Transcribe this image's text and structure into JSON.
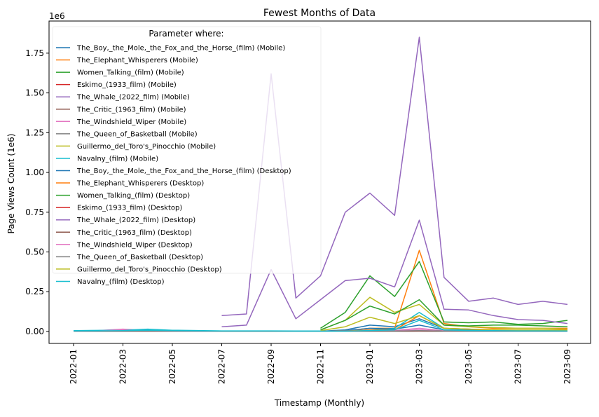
{
  "chart_data": {
    "type": "line",
    "title": "Fewest Months of Data",
    "x_label": "Timestamp (Monthly)",
    "y_label": "Page Views Count (1e6)",
    "y_offset_label": "1e6",
    "legend_title": "Parameter where:",
    "legend": "upper left",
    "categories": [
      "2022-01",
      null,
      "2022-03",
      null,
      "2022-05",
      null,
      "2022-07",
      null,
      "2022-09",
      null,
      "2022-11",
      null,
      "2023-01",
      null,
      "2023-03",
      null,
      "2023-05",
      null,
      "2023-07",
      null,
      "2023-09"
    ],
    "ylim": [
      -0.075,
      1.952
    ],
    "yticks": [
      {
        "value": 0,
        "label": "0.00"
      },
      0.25,
      {
        "value": 0.5,
        "label": "0.50"
      },
      0.75,
      {
        "value": 1,
        "label": "1.00"
      },
      1.25,
      {
        "value": 1.5,
        "label": "1.50"
      },
      1.75
    ],
    "series": [
      {
        "name": "The_Boy,_the_Mole,_the_Fox_and_the_Horse_(film) (Mobile)",
        "color": "#1f77b4",
        "values": [
          null,
          null,
          null,
          null,
          null,
          null,
          null,
          null,
          null,
          null,
          0.002,
          0.01,
          0.04,
          0.03,
          0.08,
          0.02,
          0.015,
          0.01,
          0.01,
          0.01,
          0.01
        ]
      },
      {
        "name": "The_Elephant_Whisperers (Mobile)",
        "color": "#ff7f0e",
        "values": [
          null,
          null,
          null,
          null,
          null,
          null,
          null,
          null,
          null,
          null,
          0.001,
          0.005,
          0.02,
          0.02,
          0.51,
          0.05,
          0.03,
          0.02,
          0.02,
          0.02,
          0.02
        ]
      },
      {
        "name": "Women_Talking_(film) (Mobile)",
        "color": "#2ca02c",
        "values": [
          null,
          null,
          null,
          null,
          null,
          null,
          null,
          null,
          null,
          null,
          0.02,
          0.12,
          0.35,
          0.22,
          0.44,
          0.06,
          0.055,
          0.06,
          0.045,
          0.05,
          0.07
        ]
      },
      {
        "name": "Eskimo_(1933_film) (Mobile)",
        "color": "#d62728",
        "values": [
          0.002,
          0.002,
          0.002,
          0.002,
          0.002,
          0.002,
          0.002,
          0.002,
          0.002,
          0.002,
          0.002,
          0.002,
          0.002,
          0.002,
          0.003,
          0.002,
          0.002,
          0.002,
          0.002,
          0.002,
          0.002
        ]
      },
      {
        "name": "The_Whale_(2022_film) (Mobile)",
        "color": "#9467bd",
        "values": [
          null,
          null,
          null,
          null,
          null,
          null,
          0.1,
          0.11,
          1.62,
          0.21,
          0.35,
          0.75,
          0.87,
          0.73,
          1.85,
          0.34,
          0.19,
          0.21,
          0.17,
          0.19,
          0.17
        ]
      },
      {
        "name": "The_Critic_(1963_film) (Mobile)",
        "color": "#8c564b",
        "values": [
          0.003,
          0.003,
          0.003,
          0.003,
          0.003,
          0.003,
          0.002,
          0.002,
          0.002,
          0.002,
          0.002,
          0.002,
          0.002,
          0.002,
          0.003,
          0.002,
          0.002,
          0.002,
          0.002,
          0.002,
          0.002
        ]
      },
      {
        "name": "The_Windshield_Wiper (Mobile)",
        "color": "#e377c2",
        "values": [
          0.004,
          0.006,
          0.015,
          0.006,
          0.004,
          0.003,
          0.002,
          0.002,
          0.002,
          0.002,
          0.002,
          0.003,
          0.005,
          0.006,
          0.02,
          0.004,
          0.003,
          0.003,
          0.003,
          0.003,
          0.003
        ]
      },
      {
        "name": "The_Queen_of_Basketball (Mobile)",
        "color": "#7f7f7f",
        "values": [
          0.003,
          0.003,
          0.004,
          0.003,
          0.003,
          0.003,
          0.002,
          0.002,
          0.002,
          0.002,
          0.002,
          0.002,
          0.003,
          0.004,
          0.01,
          0.003,
          0.002,
          0.002,
          0.002,
          0.002,
          0.002
        ]
      },
      {
        "name": "Guillermo_del_Toro's_Pinocchio (Mobile)",
        "color": "#bcbd22",
        "values": [
          null,
          null,
          null,
          null,
          null,
          null,
          null,
          null,
          null,
          null,
          0.01,
          0.07,
          0.215,
          0.12,
          0.17,
          0.04,
          0.03,
          0.025,
          0.02,
          0.02,
          0.015
        ]
      },
      {
        "name": "Navalny_(film) (Mobile)",
        "color": "#17becf",
        "values": [
          0.005,
          0.007,
          0.008,
          0.015,
          0.008,
          0.006,
          0.004,
          0.004,
          0.004,
          0.003,
          0.003,
          0.003,
          0.01,
          0.02,
          0.12,
          0.02,
          0.01,
          0.008,
          0.006,
          0.006,
          0.005
        ]
      },
      {
        "name": "The_Boy,_the_Mole,_the_Fox_and_the_Horse_(film) (Desktop)",
        "color": "#1f77b4",
        "values": [
          null,
          null,
          null,
          null,
          null,
          null,
          null,
          null,
          null,
          null,
          0.001,
          0.005,
          0.02,
          0.015,
          0.04,
          0.01,
          0.008,
          0.006,
          0.005,
          0.005,
          0.005
        ]
      },
      {
        "name": "The_Elephant_Whisperers (Desktop)",
        "color": "#ff7f0e",
        "values": [
          null,
          null,
          null,
          null,
          null,
          null,
          null,
          null,
          null,
          null,
          0.001,
          0.003,
          0.01,
          0.01,
          0.1,
          0.02,
          0.015,
          0.01,
          0.01,
          0.01,
          0.01
        ]
      },
      {
        "name": "Women_Talking_(film) (Desktop)",
        "color": "#2ca02c",
        "values": [
          null,
          null,
          null,
          null,
          null,
          null,
          null,
          null,
          null,
          null,
          0.01,
          0.07,
          0.16,
          0.11,
          0.2,
          0.04,
          0.035,
          0.04,
          0.04,
          0.035,
          0.03
        ]
      },
      {
        "name": "Eskimo_(1933_film) (Desktop)",
        "color": "#d62728",
        "values": [
          0.001,
          0.001,
          0.001,
          0.001,
          0.001,
          0.001,
          0.001,
          0.001,
          0.001,
          0.001,
          0.001,
          0.001,
          0.001,
          0.001,
          0.002,
          0.001,
          0.001,
          0.001,
          0.001,
          0.001,
          0.001
        ]
      },
      {
        "name": "The_Whale_(2022_film) (Desktop)",
        "color": "#9467bd",
        "values": [
          null,
          null,
          null,
          null,
          null,
          null,
          0.03,
          0.04,
          0.39,
          0.08,
          0.2,
          0.32,
          0.335,
          0.28,
          0.7,
          0.14,
          0.135,
          0.1,
          0.075,
          0.07,
          0.05
        ]
      },
      {
        "name": "The_Critic_(1963_film) (Desktop)",
        "color": "#8c564b",
        "values": [
          0.002,
          0.002,
          0.002,
          0.002,
          0.002,
          0.002,
          0.001,
          0.001,
          0.001,
          0.001,
          0.001,
          0.001,
          0.001,
          0.001,
          0.002,
          0.001,
          0.001,
          0.001,
          0.001,
          0.001,
          0.001
        ]
      },
      {
        "name": "The_Windshield_Wiper (Desktop)",
        "color": "#e377c2",
        "values": [
          0.002,
          0.003,
          0.008,
          0.003,
          0.002,
          0.002,
          0.001,
          0.001,
          0.001,
          0.001,
          0.001,
          0.002,
          0.003,
          0.003,
          0.01,
          0.002,
          0.002,
          0.002,
          0.002,
          0.002,
          0.002
        ]
      },
      {
        "name": "The_Queen_of_Basketball (Desktop)",
        "color": "#7f7f7f",
        "values": [
          0.002,
          0.002,
          0.002,
          0.002,
          0.002,
          0.002,
          0.001,
          0.001,
          0.001,
          0.001,
          0.001,
          0.001,
          0.002,
          0.002,
          0.005,
          0.002,
          0.001,
          0.001,
          0.001,
          0.001,
          0.001
        ]
      },
      {
        "name": "Guillermo_del_Toro's_Pinocchio (Desktop)",
        "color": "#bcbd22",
        "values": [
          null,
          null,
          null,
          null,
          null,
          null,
          null,
          null,
          null,
          null,
          0.005,
          0.03,
          0.09,
          0.05,
          0.1,
          0.02,
          0.015,
          0.012,
          0.01,
          0.01,
          0.008
        ]
      },
      {
        "name": "Navalny_(film) (Desktop)",
        "color": "#17becf",
        "values": [
          0.003,
          0.004,
          0.005,
          0.008,
          0.005,
          0.004,
          0.003,
          0.003,
          0.003,
          0.002,
          0.002,
          0.002,
          0.006,
          0.01,
          0.07,
          0.01,
          0.006,
          0.005,
          0.004,
          0.004,
          0.003
        ]
      }
    ]
  }
}
